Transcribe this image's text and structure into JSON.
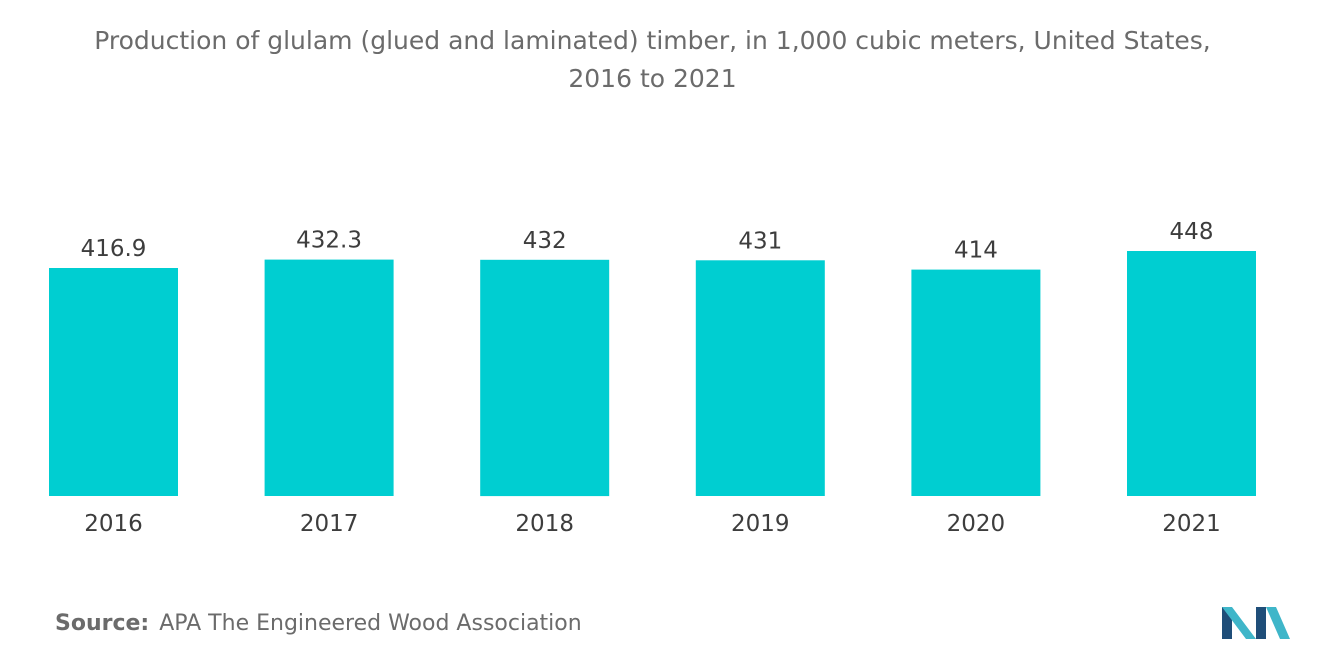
{
  "chart_data": {
    "type": "bar",
    "title_line1": "Production of glulam (glued and laminated) timber, in 1,000 cubic meters, United States,",
    "title_line2": "2016 to 2021",
    "categories": [
      "2016",
      "2017",
      "2018",
      "2019",
      "2020",
      "2021"
    ],
    "values": [
      416.9,
      432.3,
      432,
      431,
      414,
      448
    ],
    "value_labels": [
      "416.9",
      "432.3",
      "432",
      "431",
      "414",
      "448"
    ],
    "xlabel": "",
    "ylabel": "",
    "ylim": [
      0,
      448
    ],
    "grid": false,
    "legend": "none",
    "bar_color": "#00ced1"
  },
  "source": {
    "key": "Source:",
    "text": "APA The Engineered Wood Association"
  },
  "logo": {
    "icon": "mordor-intelligence-logo-icon",
    "color_dark": "#1f4e79",
    "color_light": "#3fb6c9"
  }
}
